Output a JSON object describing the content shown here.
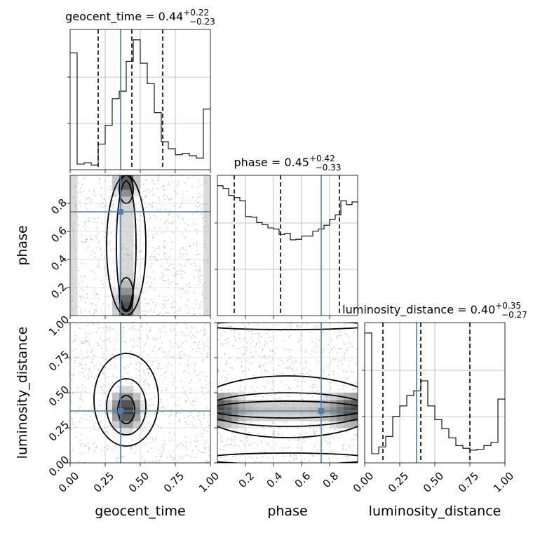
{
  "chart_data": {
    "type": "corner",
    "parameters": [
      "geocent_time",
      "phase",
      "luminosity_distance"
    ],
    "injection": {
      "geocent_time": 0.36,
      "phase": 0.74,
      "luminosity_distance": 0.37
    },
    "injection_color": "#4c7fb0",
    "marginals": [
      {
        "parameter": "geocent_time",
        "title_prefix": "geocent_time = ",
        "median": "0.44",
        "plus": "+0.22",
        "minus": "−0.23",
        "range": [
          0,
          1
        ],
        "quantiles": [
          0.2,
          0.44,
          0.66
        ],
        "bin_edges": [
          0,
          0.05,
          0.1,
          0.15,
          0.2,
          0.25,
          0.3,
          0.35,
          0.4,
          0.45,
          0.5,
          0.55,
          0.6,
          0.65,
          0.7,
          0.75,
          0.8,
          0.85,
          0.9,
          0.95,
          1.0
        ],
        "counts": [
          250,
          12,
          15,
          10,
          55,
          95,
          152,
          168,
          232,
          278,
          228,
          184,
          122,
          60,
          45,
          32,
          35,
          30,
          25,
          130
        ]
      },
      {
        "parameter": "phase",
        "title_prefix": "phase = ",
        "median": "0.45",
        "plus": "+0.42",
        "minus": "−0.33",
        "range": [
          0,
          1
        ],
        "quantiles": [
          0.12,
          0.45,
          0.87
        ],
        "bin_edges": [
          0,
          0.04,
          0.08,
          0.12,
          0.16,
          0.2,
          0.24,
          0.28,
          0.32,
          0.36,
          0.4,
          0.44,
          0.48,
          0.52,
          0.56,
          0.6,
          0.64,
          0.68,
          0.72,
          0.76,
          0.8,
          0.84,
          0.88,
          0.92,
          0.96,
          1.0
        ],
        "counts": [
          240,
          235,
          222,
          218,
          212,
          183,
          182,
          172,
          168,
          162,
          160,
          150,
          152,
          140,
          141,
          147,
          147,
          156,
          160,
          167,
          178,
          186,
          212,
          205,
          210
        ]
      },
      {
        "parameter": "luminosity_distance",
        "title_prefix": "luminosity_distance = ",
        "median": "0.40",
        "plus": "+0.35",
        "minus": "−0.27",
        "range": [
          0,
          1
        ],
        "quantiles": [
          0.13,
          0.4,
          0.75
        ],
        "bin_edges": [
          0,
          0.05,
          0.1,
          0.15,
          0.2,
          0.25,
          0.3,
          0.35,
          0.4,
          0.45,
          0.5,
          0.55,
          0.6,
          0.65,
          0.7,
          0.75,
          0.8,
          0.85,
          0.9,
          0.95,
          1.0
        ],
        "counts": [
          285,
          20,
          35,
          58,
          102,
          125,
          148,
          158,
          180,
          125,
          95,
          75,
          55,
          38,
          32,
          28,
          30,
          38,
          45,
          140
        ]
      }
    ],
    "axes": {
      "geocent_time": {
        "label": "geocent_time",
        "ticks": [
          0.0,
          0.25,
          0.5,
          0.75,
          1.0
        ],
        "tick_labels": [
          "0.00",
          "0.25",
          "0.50",
          "0.75",
          "1.00"
        ]
      },
      "phase": {
        "label": "phase",
        "ticks": [
          0.2,
          0.4,
          0.6,
          0.8
        ],
        "tick_labels": [
          "0.2",
          "0.4",
          "0.6",
          "0.8"
        ]
      },
      "luminosity_distance": {
        "label": "luminosity_distance",
        "ticks": [
          0.0,
          0.25,
          0.5,
          0.75,
          1.0
        ],
        "tick_labels": [
          "0.00",
          "0.25",
          "0.50",
          "0.75",
          "1.00"
        ]
      }
    },
    "posterior_density": {
      "geocent_time_phase": {
        "x_center": 0.4,
        "y_center": 0.5,
        "x_width": 0.1,
        "note_edges": "mass near x=0 and x=1"
      },
      "geocent_time_luminosity_distance": {
        "x_center": 0.4,
        "y_center": 0.38
      },
      "phase_luminosity_distance": {
        "y_center": 0.38,
        "edges_y": [
          0.0,
          1.0
        ]
      }
    },
    "grid": true
  }
}
